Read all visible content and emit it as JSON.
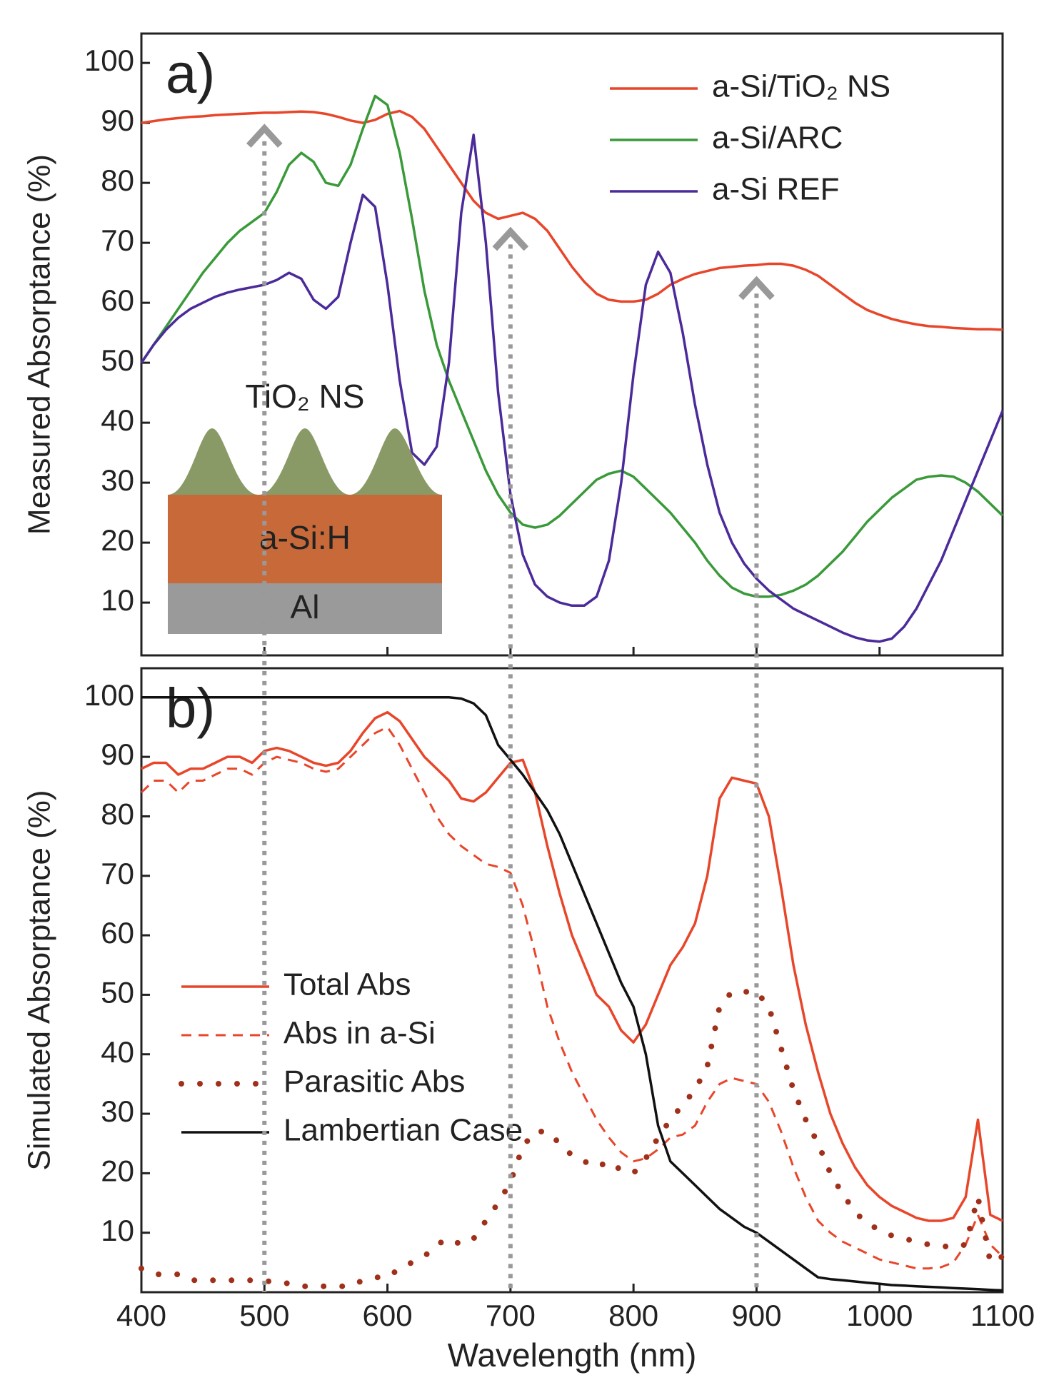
{
  "chart_data": [
    {
      "type": "line",
      "label": "a)",
      "ylabel": "Measured Absorptance (%)",
      "inset": {
        "top": "TiO₂ NS",
        "middle": "a-Si:H",
        "bottom": "Al"
      },
      "xlim": [
        400,
        1100
      ],
      "xticks": [
        400,
        500,
        600,
        700,
        800,
        900,
        1000,
        1100
      ],
      "show_xtick_labels": false,
      "ylim": [
        1.2,
        104.9
      ],
      "yticks": [
        10,
        20,
        30,
        40,
        50,
        60,
        70,
        80,
        90,
        100
      ],
      "legend": "upper right",
      "highlight_x": [
        500,
        700,
        900
      ],
      "x": [
        400,
        410,
        420,
        430,
        440,
        450,
        460,
        470,
        480,
        490,
        500,
        510,
        520,
        530,
        540,
        550,
        560,
        570,
        580,
        590,
        600,
        610,
        620,
        630,
        640,
        650,
        660,
        670,
        680,
        690,
        700,
        710,
        720,
        730,
        740,
        750,
        760,
        770,
        780,
        790,
        800,
        810,
        820,
        830,
        840,
        850,
        860,
        870,
        880,
        890,
        900,
        910,
        920,
        930,
        940,
        950,
        960,
        970,
        980,
        990,
        1000,
        1010,
        1020,
        1030,
        1040,
        1050,
        1060,
        1070,
        1080,
        1090,
        1100
      ],
      "series": [
        {
          "name": "a-Si/TiO₂ NS",
          "color": "#e8462a",
          "style": "solid",
          "values": [
            90,
            90.3,
            90.6,
            90.8,
            91,
            91.1,
            91.3,
            91.4,
            91.5,
            91.6,
            91.7,
            91.7,
            91.8,
            91.9,
            91.8,
            91.5,
            91,
            90.4,
            90,
            90.5,
            91.5,
            92,
            91,
            89,
            86,
            83,
            80,
            77,
            75,
            74,
            74.5,
            75,
            74,
            72,
            69,
            66,
            63.5,
            61.5,
            60.5,
            60.2,
            60.2,
            60.5,
            61.5,
            63,
            64,
            64.8,
            65.3,
            65.8,
            66,
            66.2,
            66.3,
            66.5,
            66.5,
            66.2,
            65.5,
            64.5,
            63,
            61.5,
            60,
            58.8,
            58,
            57.3,
            56.8,
            56.4,
            56.1,
            56,
            55.8,
            55.7,
            55.6,
            55.6,
            55.5
          ]
        },
        {
          "name": "a-Si/ARC",
          "color": "#3a9a3a",
          "style": "solid",
          "values": [
            50,
            53,
            56,
            59,
            62,
            65,
            67.5,
            70,
            72,
            73.5,
            75,
            78.5,
            83,
            85,
            83.5,
            80,
            79.5,
            83,
            89,
            94.5,
            93,
            85,
            74,
            62,
            53,
            47,
            42,
            37,
            32,
            28,
            25,
            23,
            22.5,
            23,
            24.5,
            26.5,
            28.5,
            30.5,
            31.5,
            32,
            31,
            29,
            27,
            25,
            22.5,
            20,
            17,
            14.5,
            12.5,
            11.5,
            11,
            11,
            11.3,
            12,
            13,
            14.5,
            16.5,
            18.5,
            21,
            23.5,
            25.5,
            27.5,
            29,
            30.5,
            31,
            31.2,
            31,
            30,
            28.5,
            26.5,
            24.5
          ]
        },
        {
          "name": "a-Si REF",
          "color": "#4b2a9a",
          "style": "solid",
          "values": [
            50,
            53,
            55.5,
            57.5,
            59,
            60,
            61,
            61.7,
            62.2,
            62.6,
            63,
            63.8,
            65,
            64,
            60.5,
            59,
            61,
            70,
            78,
            76,
            63,
            47,
            35,
            33,
            36,
            50,
            75,
            88,
            70,
            45,
            28,
            18,
            13,
            11,
            10,
            9.5,
            9.5,
            11,
            17,
            30,
            48,
            63,
            68.5,
            65,
            55,
            43,
            33,
            25,
            20,
            16.5,
            14,
            12,
            10.5,
            9,
            8,
            7,
            6,
            5,
            4.2,
            3.7,
            3.5,
            4,
            6,
            9,
            13,
            17,
            22,
            27,
            32,
            37,
            42
          ]
        }
      ]
    },
    {
      "type": "line",
      "label": "b)",
      "ylabel": "Simulated Absorptance (%)",
      "xlabel": "Wavelength (nm)",
      "xlim": [
        400,
        1100
      ],
      "xticks": [
        400,
        500,
        600,
        700,
        800,
        900,
        1000,
        1100
      ],
      "show_xtick_labels": true,
      "ylim": [
        0,
        104.9
      ],
      "yticks": [
        10,
        20,
        30,
        40,
        50,
        60,
        70,
        80,
        90,
        100
      ],
      "legend": "center left",
      "x": [
        400,
        410,
        420,
        430,
        440,
        450,
        460,
        470,
        480,
        490,
        500,
        510,
        520,
        530,
        540,
        550,
        560,
        570,
        580,
        590,
        600,
        610,
        620,
        630,
        640,
        650,
        660,
        670,
        680,
        690,
        700,
        710,
        720,
        730,
        740,
        750,
        760,
        770,
        780,
        790,
        800,
        810,
        820,
        830,
        840,
        850,
        860,
        870,
        880,
        890,
        900,
        910,
        920,
        930,
        940,
        950,
        960,
        970,
        980,
        990,
        1000,
        1010,
        1020,
        1030,
        1040,
        1050,
        1060,
        1070,
        1080,
        1090,
        1100
      ],
      "series": [
        {
          "name": "Total Abs",
          "color": "#e8462a",
          "style": "solid",
          "values": [
            88,
            89,
            89,
            87,
            88,
            88,
            89,
            90,
            90,
            89,
            91,
            91.5,
            91,
            90,
            89,
            88.5,
            89,
            91,
            94,
            96.5,
            97.5,
            96,
            93,
            90,
            88,
            86,
            83,
            82.5,
            84,
            86.5,
            89,
            89.5,
            84,
            75,
            67,
            60,
            55,
            50,
            48,
            44,
            42,
            45,
            50,
            55,
            58,
            62,
            70,
            83,
            86.5,
            86,
            85.5,
            80,
            68,
            55,
            45,
            37,
            30,
            25,
            21,
            18,
            16,
            14.5,
            13.5,
            12.5,
            12,
            12,
            12.5,
            16,
            29,
            13,
            12
          ]
        },
        {
          "name": "Abs in a-Si",
          "color": "#e8462a",
          "style": "dashed",
          "values": [
            84,
            86,
            86,
            84,
            86,
            86,
            87,
            88,
            88,
            87,
            89,
            90,
            89.5,
            89,
            88,
            87.5,
            88,
            90,
            92,
            94,
            95,
            92,
            88,
            84,
            80,
            77,
            75,
            73.5,
            72,
            71.5,
            70.5,
            65,
            57,
            48,
            42,
            37,
            33,
            29,
            26,
            23.5,
            22,
            22.5,
            24,
            26,
            26.5,
            28,
            32,
            35,
            36,
            35.5,
            35,
            32,
            27,
            21,
            16,
            12,
            10,
            8.5,
            7.5,
            6.5,
            5.5,
            5,
            4.5,
            4,
            4,
            4.2,
            5,
            8,
            13,
            8,
            6
          ]
        },
        {
          "name": "Parasitic Abs",
          "color": "#a0301a",
          "style": "dotted",
          "values": [
            4,
            3,
            3,
            3,
            2,
            2,
            2,
            2,
            2,
            2,
            2,
            1.5,
            1.5,
            1,
            1,
            1,
            1,
            1,
            2,
            2.5,
            2.5,
            4,
            5,
            6,
            8,
            9,
            8,
            9,
            12,
            15,
            18.5,
            24.5,
            27,
            27,
            25,
            23,
            22,
            21,
            22,
            20.5,
            20,
            22.5,
            26,
            29,
            31.5,
            34,
            38,
            48,
            50.5,
            50.5,
            50.5,
            48,
            41,
            34,
            29,
            25,
            20,
            16.5,
            13.5,
            11.5,
            10.5,
            9.5,
            9,
            8.5,
            8,
            7.8,
            7.5,
            8,
            16,
            5,
            6
          ]
        },
        {
          "name": "Lambertian Case",
          "color": "#111111",
          "style": "solid",
          "values": [
            100,
            100,
            100,
            100,
            100,
            100,
            100,
            100,
            100,
            100,
            100,
            100,
            100,
            100,
            100,
            100,
            100,
            100,
            100,
            100,
            100,
            100,
            100,
            100,
            100,
            100,
            99.8,
            99,
            97,
            92,
            89.5,
            87,
            84,
            81,
            77,
            72,
            67,
            62,
            57,
            52,
            48,
            40,
            28,
            22,
            20,
            18,
            16,
            14,
            12.5,
            11,
            10,
            8.5,
            7,
            5.5,
            4,
            2.5,
            2.2,
            2,
            1.8,
            1.6,
            1.4,
            1.2,
            1.1,
            1,
            0.9,
            0.8,
            0.7,
            0.6,
            0.5,
            0.4,
            0.3
          ]
        }
      ]
    }
  ]
}
